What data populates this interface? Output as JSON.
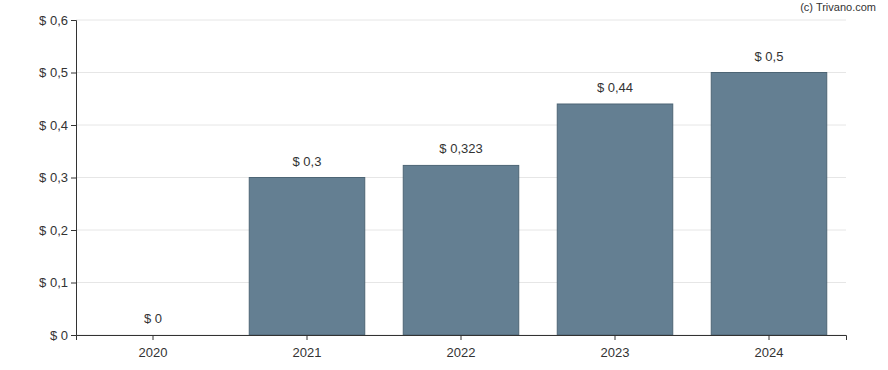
{
  "chart_data": {
    "type": "bar",
    "annotations": [
      "(c) Trivano.com"
    ],
    "categories": [
      "2020",
      "2021",
      "2022",
      "2023",
      "2024"
    ],
    "values": [
      0,
      0.3,
      0.323,
      0.44,
      0.5
    ],
    "value_labels": [
      "$ 0",
      "$ 0,3",
      "$ 0,323",
      "$ 0,44",
      "$ 0,5"
    ],
    "data_labels": true,
    "color": "#647f92",
    "ylim": [
      0,
      0.6
    ],
    "yticks": [
      {
        "value": 0,
        "label": "$ 0"
      },
      {
        "value": 0.1,
        "label": "$ 0,1"
      },
      {
        "value": 0.2,
        "label": "$ 0,2"
      },
      {
        "value": 0.3,
        "label": "$ 0,3"
      },
      {
        "value": 0.4,
        "label": "$ 0,4"
      },
      {
        "value": 0.5,
        "label": "$ 0,5"
      },
      {
        "value": 0.6,
        "label": "$ 0,6"
      }
    ],
    "grid": true
  }
}
